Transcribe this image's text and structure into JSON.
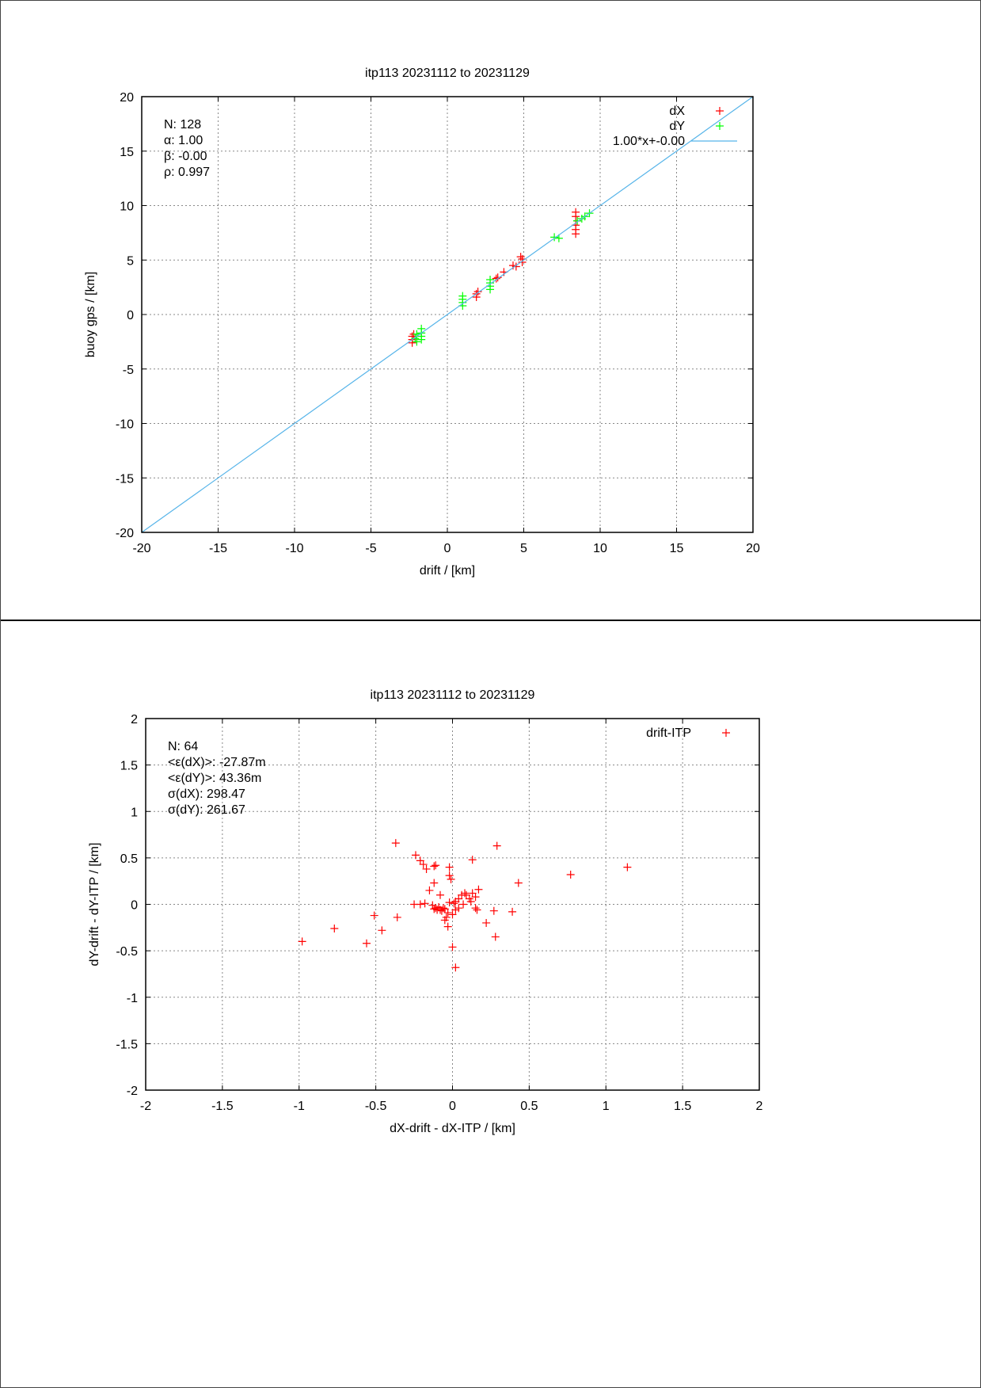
{
  "chart_data": [
    {
      "type": "scatter",
      "title": "itp113 20231112 to 20231129",
      "xlabel": "drift / [km]",
      "ylabel": "buoy gps / [km]",
      "xlim": [
        -20,
        20
      ],
      "ylim": [
        -20,
        20
      ],
      "xticks": [
        -20,
        -15,
        -10,
        -5,
        0,
        5,
        10,
        15,
        20
      ],
      "yticks": [
        -20,
        -15,
        -10,
        -5,
        0,
        5,
        10,
        15,
        20
      ],
      "grid": true,
      "legend_placement": "top-right",
      "stats": [
        "N: 128",
        "α: 1.00",
        "β: -0.00",
        "ρ: 0.997"
      ],
      "series": [
        {
          "name": "dX",
          "color": "#ff0000",
          "marker": "+",
          "points": [
            [
              -2.3,
              -2.0
            ],
            [
              -2.3,
              -2.3
            ],
            [
              -2.3,
              -2.6
            ],
            [
              -2.2,
              -1.8
            ],
            [
              1.9,
              1.6
            ],
            [
              1.9,
              1.9
            ],
            [
              2.0,
              2.1
            ],
            [
              3.2,
              3.3
            ],
            [
              3.3,
              3.4
            ],
            [
              3.7,
              3.9
            ],
            [
              4.3,
              4.5
            ],
            [
              4.5,
              4.4
            ],
            [
              4.9,
              4.8
            ],
            [
              4.9,
              5.1
            ],
            [
              4.8,
              5.3
            ],
            [
              8.4,
              7.4
            ],
            [
              8.4,
              7.8
            ],
            [
              8.4,
              8.2
            ],
            [
              8.4,
              9.0
            ],
            [
              8.4,
              9.4
            ],
            [
              8.5,
              8.6
            ]
          ]
        },
        {
          "name": "dY",
          "color": "#00ff00",
          "marker": "+",
          "points": [
            [
              -1.7,
              -1.3
            ],
            [
              -1.7,
              -1.7
            ],
            [
              -1.7,
              -2.0
            ],
            [
              -1.7,
              -2.3
            ],
            [
              -2.0,
              -1.8
            ],
            [
              -2.1,
              -2.2
            ],
            [
              -2.0,
              -2.5
            ],
            [
              1.0,
              0.8
            ],
            [
              1.0,
              1.1
            ],
            [
              1.0,
              1.4
            ],
            [
              1.0,
              1.7
            ],
            [
              2.8,
              2.3
            ],
            [
              2.8,
              2.6
            ],
            [
              2.8,
              2.9
            ],
            [
              2.8,
              3.2
            ],
            [
              7.0,
              7.1
            ],
            [
              7.3,
              7.0
            ],
            [
              8.5,
              8.6
            ],
            [
              8.8,
              8.8
            ],
            [
              9.0,
              9.0
            ],
            [
              9.3,
              9.3
            ]
          ]
        },
        {
          "name": "1.00*x+-0.00",
          "color": "#56b4e9",
          "type": "line",
          "slope": 1.0,
          "intercept": 0.0
        }
      ]
    },
    {
      "type": "scatter",
      "title": "itp113 20231112 to 20231129",
      "xlabel": "dX-drift - dX-ITP / [km]",
      "ylabel": "dY-drift - dY-ITP / [km]",
      "xlim": [
        -2,
        2
      ],
      "ylim": [
        -2,
        2
      ],
      "xticks": [
        -2,
        -1.5,
        -1,
        -0.5,
        0,
        0.5,
        1,
        1.5,
        2
      ],
      "yticks": [
        -2,
        -1.5,
        -1,
        -0.5,
        0,
        0.5,
        1,
        1.5,
        2
      ],
      "grid": true,
      "legend_placement": "top-right",
      "stats": [
        "N: 64",
        "<ε(dX)>:  -27.87m",
        "<ε(dY)>: 43.36m",
        "σ(dX):  298.47",
        "σ(dY):  261.67"
      ],
      "series": [
        {
          "name": "drift-ITP",
          "color": "#ff0000",
          "marker": "+",
          "points": [
            [
              -0.37,
              0.66
            ],
            [
              -0.24,
              0.53
            ],
            [
              -0.21,
              0.47
            ],
            [
              -0.19,
              0.43
            ],
            [
              -0.17,
              0.38
            ],
            [
              -0.12,
              0.41
            ],
            [
              -0.11,
              0.42
            ],
            [
              -0.02,
              0.4
            ],
            [
              -0.02,
              0.31
            ],
            [
              -0.01,
              0.27
            ],
            [
              0.13,
              0.48
            ],
            [
              0.29,
              0.63
            ],
            [
              0.77,
              0.32
            ],
            [
              1.14,
              0.4
            ],
            [
              0.43,
              0.23
            ],
            [
              -0.12,
              0.23
            ],
            [
              -0.15,
              0.15
            ],
            [
              -0.08,
              0.1
            ],
            [
              0.17,
              0.16
            ],
            [
              0.13,
              0.12
            ],
            [
              0.15,
              0.08
            ],
            [
              0.11,
              0.06
            ],
            [
              0.08,
              0.12
            ],
            [
              0.06,
              0.1
            ],
            [
              0.04,
              0.06
            ],
            [
              0.02,
              0.03
            ],
            [
              -0.25,
              0.0
            ],
            [
              -0.21,
              0.0
            ],
            [
              -0.18,
              0.01
            ],
            [
              -0.13,
              -0.01
            ],
            [
              -0.11,
              -0.04
            ],
            [
              -0.09,
              -0.03
            ],
            [
              -0.08,
              -0.06
            ],
            [
              -0.06,
              -0.04
            ],
            [
              -0.05,
              -0.05
            ],
            [
              -0.03,
              -0.09
            ],
            [
              -0.04,
              -0.14
            ],
            [
              -0.05,
              -0.17
            ],
            [
              0.0,
              -0.11
            ],
            [
              0.02,
              -0.06
            ],
            [
              0.04,
              -0.04
            ],
            [
              0.07,
              0.0
            ],
            [
              0.15,
              -0.04
            ],
            [
              0.16,
              -0.06
            ],
            [
              0.27,
              -0.07
            ],
            [
              0.39,
              -0.08
            ],
            [
              -0.51,
              -0.12
            ],
            [
              -0.36,
              -0.14
            ],
            [
              0.22,
              -0.2
            ],
            [
              -0.03,
              -0.24
            ],
            [
              0.28,
              -0.35
            ],
            [
              -0.46,
              -0.28
            ],
            [
              -0.77,
              -0.26
            ],
            [
              -0.98,
              -0.4
            ],
            [
              -0.56,
              -0.42
            ],
            [
              0.0,
              -0.46
            ],
            [
              0.02,
              -0.68
            ],
            [
              -0.1,
              -0.06
            ],
            [
              -0.12,
              -0.05
            ],
            [
              0.01,
              0.01
            ],
            [
              0.09,
              0.1
            ],
            [
              -0.02,
              0.02
            ],
            [
              0.12,
              0.03
            ],
            [
              -0.07,
              -0.07
            ]
          ]
        }
      ]
    }
  ]
}
